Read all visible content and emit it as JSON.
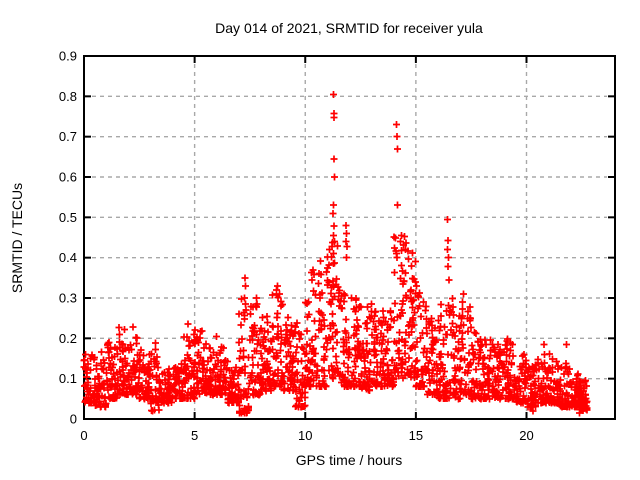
{
  "window": {
    "background": "#ffffff"
  },
  "chart_data": {
    "type": "scatter",
    "title": "Day 014 of 2021, SRMTID for receiver yula",
    "xlabel": "GPS time / hours",
    "ylabel": "SRMTID / TECUs",
    "xlim": [
      0,
      24
    ],
    "ylim": [
      0,
      0.9
    ],
    "xticks": [
      0,
      5,
      10,
      15,
      20
    ],
    "xtick_labels": [
      "0",
      "5",
      "10",
      "15",
      "20"
    ],
    "yticks": [
      0,
      0.1,
      0.2,
      0.3,
      0.4,
      0.5,
      0.6,
      0.7,
      0.8,
      0.9
    ],
    "ytick_labels": [
      "0",
      "0.1",
      "0.2",
      "0.3",
      "0.4",
      "0.5",
      "0.6",
      "0.7",
      "0.8",
      "0.9"
    ],
    "grid": true,
    "grid_style": "dashed",
    "grid_color": "#a8a8a8",
    "axis_color": "#000000",
    "legend": "none",
    "marker": "plus",
    "marker_color": "#ff0000",
    "series_name": "SRMTID for receiver yula",
    "data_time_span_hours": [
      0,
      22.75
    ],
    "notable_points": [
      [
        11.28,
        0.805
      ],
      [
        11.31,
        0.757
      ],
      [
        11.3,
        0.747
      ],
      [
        11.29,
        0.645
      ],
      [
        11.32,
        0.6
      ],
      [
        11.27,
        0.53
      ],
      [
        11.25,
        0.51
      ],
      [
        11.3,
        0.478
      ],
      [
        11.27,
        0.455
      ],
      [
        11.32,
        0.44
      ],
      [
        11.22,
        0.428
      ],
      [
        11.85,
        0.48
      ],
      [
        11.87,
        0.46
      ],
      [
        11.85,
        0.44
      ],
      [
        11.88,
        0.428
      ],
      [
        11.86,
        0.4
      ],
      [
        14.13,
        0.73
      ],
      [
        14.15,
        0.7
      ],
      [
        14.17,
        0.67
      ],
      [
        14.18,
        0.53
      ],
      [
        14.35,
        0.455
      ],
      [
        14.3,
        0.44
      ],
      [
        14.45,
        0.432
      ],
      [
        14.52,
        0.42
      ],
      [
        16.42,
        0.495
      ],
      [
        16.45,
        0.442
      ],
      [
        16.44,
        0.42
      ],
      [
        16.47,
        0.4
      ],
      [
        16.45,
        0.378
      ],
      [
        16.5,
        0.345
      ],
      [
        10.35,
        0.37
      ],
      [
        10.4,
        0.358
      ],
      [
        10.3,
        0.345
      ],
      [
        7.28,
        0.35
      ],
      [
        7.3,
        0.33
      ],
      [
        7.26,
        0.3
      ],
      [
        7.3,
        0.285
      ],
      [
        7.32,
        0.27
      ],
      [
        7.8,
        0.3
      ],
      [
        7.82,
        0.285
      ],
      [
        8.75,
        0.33
      ],
      [
        8.7,
        0.31
      ],
      [
        12.1,
        0.3
      ],
      [
        13.0,
        0.285
      ],
      [
        17.15,
        0.31
      ],
      [
        17.1,
        0.29
      ],
      [
        4.7,
        0.235
      ],
      [
        20.8,
        0.185
      ],
      [
        20.82,
        0.16
      ],
      [
        21.8,
        0.185
      ],
      [
        3.1,
        0.02
      ],
      [
        7.35,
        0.015
      ],
      [
        9.8,
        0.03
      ],
      [
        20.3,
        0.02
      ],
      [
        22.4,
        0.015
      ]
    ],
    "density_envelope": {
      "description": "Dense baseline scatter; each segment is [hour_start, hour_end, n_points, y_min, y_max, skew_exponent]",
      "segments": [
        [
          0.0,
          0.5,
          46,
          0.04,
          0.16,
          1.8
        ],
        [
          0.5,
          1.0,
          46,
          0.03,
          0.17,
          1.8
        ],
        [
          1.0,
          1.5,
          46,
          0.05,
          0.19,
          1.8
        ],
        [
          1.5,
          2.0,
          46,
          0.06,
          0.235,
          1.7
        ],
        [
          2.0,
          2.5,
          46,
          0.06,
          0.23,
          1.7
        ],
        [
          2.5,
          3.0,
          46,
          0.05,
          0.19,
          1.8
        ],
        [
          3.0,
          3.4,
          36,
          0.02,
          0.21,
          1.6
        ],
        [
          3.4,
          4.0,
          52,
          0.04,
          0.13,
          1.8
        ],
        [
          4.0,
          4.5,
          46,
          0.05,
          0.14,
          1.8
        ],
        [
          4.5,
          5.0,
          46,
          0.05,
          0.21,
          1.8
        ],
        [
          5.0,
          5.5,
          46,
          0.06,
          0.23,
          1.8
        ],
        [
          5.5,
          6.0,
          46,
          0.06,
          0.215,
          1.8
        ],
        [
          6.0,
          6.5,
          46,
          0.06,
          0.18,
          1.8
        ],
        [
          6.5,
          7.0,
          46,
          0.04,
          0.13,
          1.8
        ],
        [
          7.0,
          7.5,
          46,
          0.015,
          0.3,
          2.0
        ],
        [
          7.5,
          8.0,
          46,
          0.06,
          0.28,
          2.0
        ],
        [
          8.0,
          8.5,
          46,
          0.07,
          0.26,
          1.9
        ],
        [
          8.5,
          9.0,
          46,
          0.08,
          0.33,
          1.9
        ],
        [
          9.0,
          9.5,
          46,
          0.07,
          0.26,
          1.9
        ],
        [
          9.5,
          10.0,
          46,
          0.03,
          0.24,
          1.8
        ],
        [
          10.0,
          10.5,
          46,
          0.08,
          0.38,
          1.9
        ],
        [
          10.5,
          11.0,
          46,
          0.08,
          0.4,
          1.9
        ],
        [
          11.0,
          11.5,
          50,
          0.1,
          0.44,
          1.7
        ],
        [
          11.5,
          12.0,
          46,
          0.08,
          0.33,
          1.8
        ],
        [
          12.0,
          12.5,
          46,
          0.08,
          0.3,
          1.8
        ],
        [
          12.5,
          13.0,
          46,
          0.07,
          0.28,
          1.8
        ],
        [
          13.0,
          13.5,
          46,
          0.08,
          0.28,
          1.8
        ],
        [
          13.5,
          14.0,
          46,
          0.08,
          0.27,
          1.8
        ],
        [
          14.0,
          14.5,
          50,
          0.1,
          0.46,
          1.6
        ],
        [
          14.5,
          15.0,
          54,
          0.1,
          0.44,
          1.4
        ],
        [
          15.0,
          15.5,
          46,
          0.08,
          0.35,
          1.7
        ],
        [
          15.5,
          16.0,
          46,
          0.06,
          0.26,
          1.8
        ],
        [
          16.0,
          16.5,
          46,
          0.05,
          0.31,
          1.9
        ],
        [
          16.5,
          17.0,
          46,
          0.05,
          0.3,
          1.9
        ],
        [
          17.0,
          17.5,
          46,
          0.06,
          0.29,
          1.9
        ],
        [
          17.5,
          18.0,
          46,
          0.05,
          0.22,
          1.8
        ],
        [
          18.0,
          18.5,
          46,
          0.05,
          0.21,
          1.8
        ],
        [
          18.5,
          19.0,
          46,
          0.05,
          0.19,
          1.8
        ],
        [
          19.0,
          19.5,
          46,
          0.05,
          0.2,
          1.8
        ],
        [
          19.5,
          20.0,
          46,
          0.04,
          0.16,
          1.8
        ],
        [
          20.0,
          20.5,
          46,
          0.03,
          0.14,
          1.8
        ],
        [
          20.5,
          21.0,
          44,
          0.04,
          0.15,
          1.8
        ],
        [
          21.0,
          21.5,
          46,
          0.04,
          0.17,
          1.8
        ],
        [
          21.5,
          22.0,
          46,
          0.03,
          0.15,
          1.8
        ],
        [
          22.0,
          22.4,
          44,
          0.03,
          0.12,
          1.6
        ],
        [
          22.4,
          22.75,
          44,
          0.02,
          0.1,
          1.5
        ]
      ]
    },
    "seed": 20210114
  }
}
